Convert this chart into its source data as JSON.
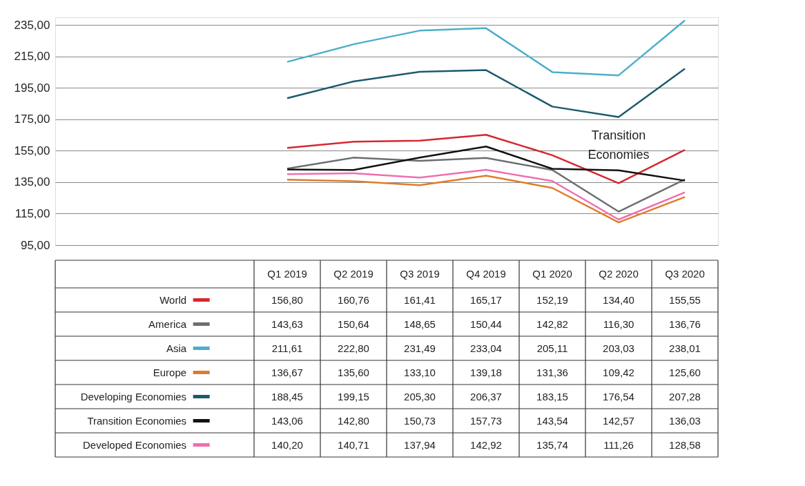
{
  "chart_data": {
    "type": "line",
    "categories": [
      "Q1 2019",
      "Q2 2019",
      "Q3 2019",
      "Q4 2019",
      "Q1 2020",
      "Q2 2020",
      "Q3 2020"
    ],
    "series": [
      {
        "name": "World",
        "color": "#d7262e",
        "values": [
          156.8,
          160.76,
          161.41,
          165.17,
          152.19,
          134.4,
          155.55
        ],
        "value_labels": [
          "156,80",
          "160,76",
          "161,41",
          "165,17",
          "152,19",
          "134,40",
          "155,55"
        ]
      },
      {
        "name": "America",
        "color": "#6d6e70",
        "values": [
          143.63,
          150.64,
          148.65,
          150.44,
          142.82,
          116.3,
          136.76
        ],
        "value_labels": [
          "143,63",
          "150,64",
          "148,65",
          "150,44",
          "142,82",
          "116,30",
          "136,76"
        ]
      },
      {
        "name": "Asia",
        "color": "#4bafc9",
        "values": [
          211.61,
          222.8,
          231.49,
          233.04,
          205.11,
          203.03,
          238.01
        ],
        "value_labels": [
          "211,61",
          "222,80",
          "231,49",
          "233,04",
          "205,11",
          "203,03",
          "238,01"
        ]
      },
      {
        "name": "Europe",
        "color": "#e07b2a",
        "values": [
          136.67,
          135.6,
          133.1,
          139.18,
          131.36,
          109.42,
          125.6
        ],
        "value_labels": [
          "136,67",
          "135,60",
          "133,10",
          "139,18",
          "131,36",
          "109,42",
          "125,60"
        ]
      },
      {
        "name": "Developing Economies",
        "color": "#1b5a6e",
        "values": [
          188.45,
          199.15,
          205.3,
          206.37,
          183.15,
          176.54,
          207.28
        ],
        "value_labels": [
          "188,45",
          "199,15",
          "205,30",
          "206,37",
          "183,15",
          "176,54",
          "207,28"
        ]
      },
      {
        "name": "Transition Economies",
        "color": "#111111",
        "values": [
          143.06,
          142.8,
          150.73,
          157.73,
          143.54,
          142.57,
          136.03
        ],
        "value_labels": [
          "143,06",
          "142,80",
          "150,73",
          "157,73",
          "143,54",
          "142,57",
          "136,03"
        ]
      },
      {
        "name": "Developed Economies",
        "color": "#ee6fae",
        "values": [
          140.2,
          140.71,
          137.94,
          142.92,
          135.74,
          111.26,
          128.58
        ],
        "value_labels": [
          "140,20",
          "140,71",
          "137,94",
          "142,92",
          "135,74",
          "111,26",
          "128,58"
        ]
      }
    ],
    "ylim": [
      95,
      240
    ],
    "yticks": [
      {
        "value": 95,
        "label": "95,00"
      },
      {
        "value": 115,
        "label": "115,00"
      },
      {
        "value": 135,
        "label": "135,00"
      },
      {
        "value": 155,
        "label": "155,00"
      },
      {
        "value": 175,
        "label": "175,00"
      },
      {
        "value": 195,
        "label": "195,00"
      },
      {
        "value": 215,
        "label": "215,00"
      },
      {
        "value": 235,
        "label": "235,00"
      }
    ],
    "grid": "y",
    "legend": "bottom",
    "tick_labels": "y",
    "marker": "none",
    "line_style": "solid",
    "annotations": [
      "Transition Economies"
    ]
  }
}
